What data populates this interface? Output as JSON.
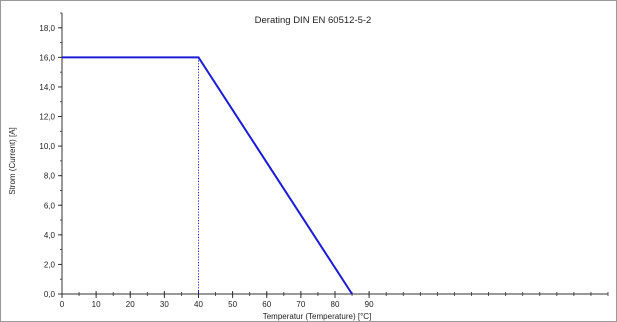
{
  "chart_data": {
    "type": "line",
    "title": "Derating DIN EN 60512-5-2",
    "xlabel": "Temperatur (Temperature) [°C]",
    "ylabel": "Strom (Current) [A]",
    "xlim": [
      0,
      160
    ],
    "ylim": [
      0,
      19
    ],
    "x_ticks": [
      0,
      10,
      20,
      30,
      40,
      50,
      60,
      70,
      80,
      90
    ],
    "x_tick_labels": [
      "0",
      "10",
      "20",
      "30",
      "40",
      "50",
      "60",
      "70",
      "80",
      "90"
    ],
    "y_ticks": [
      0,
      2,
      4,
      6,
      8,
      10,
      12,
      14,
      16,
      18
    ],
    "y_tick_labels": [
      "0,0",
      "2,0",
      "4,0",
      "6,0",
      "8,0",
      "10,0",
      "12,0",
      "14,0",
      "16,0",
      "18,0"
    ],
    "grid": false,
    "series": [
      {
        "x": [
          0,
          40,
          85
        ],
        "y": [
          16,
          16,
          0
        ],
        "color": "#1c1cd6"
      }
    ],
    "reference_lines": [
      {
        "type": "vertical-dotted",
        "x": 40,
        "y_from": 0,
        "y_to": 16,
        "color": "#1c1cd6"
      }
    ]
  }
}
